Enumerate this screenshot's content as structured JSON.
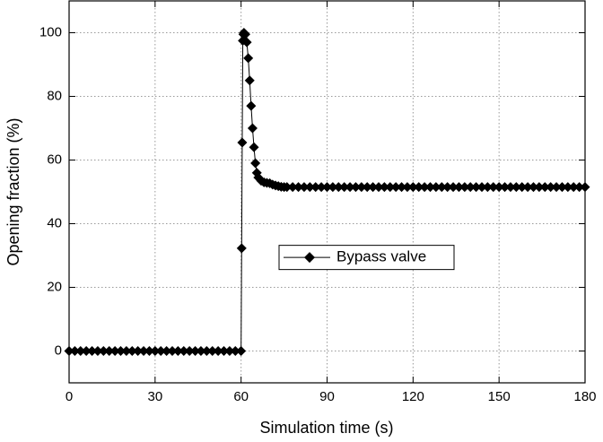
{
  "chart_data": {
    "type": "line",
    "x_label": "Simulation time (s)",
    "y_label": "Opening fraction (%)",
    "xlim": [
      0,
      180
    ],
    "ylim": [
      -10,
      110
    ],
    "xticks": [
      0,
      30,
      60,
      90,
      120,
      150,
      180
    ],
    "yticks": [
      0,
      20,
      40,
      60,
      80,
      100
    ],
    "grid": true,
    "legend": "center",
    "x": [
      0,
      2,
      4,
      6,
      8,
      10,
      12,
      14,
      16,
      18,
      20,
      22,
      24,
      26,
      28,
      30,
      32,
      34,
      36,
      38,
      40,
      42,
      44,
      46,
      48,
      50,
      52,
      54,
      56,
      58,
      60,
      60.2,
      60.4,
      60.6,
      60.8,
      61,
      61.5,
      62,
      62.5,
      63,
      63.5,
      64,
      64.5,
      65,
      65.5,
      66,
      67,
      68,
      69,
      70,
      71,
      72,
      73,
      74,
      75,
      76,
      78,
      80,
      82,
      84,
      86,
      88,
      90,
      92,
      94,
      96,
      98,
      100,
      102,
      104,
      106,
      108,
      110,
      112,
      114,
      116,
      118,
      120,
      122,
      124,
      126,
      128,
      130,
      132,
      134,
      136,
      138,
      140,
      142,
      144,
      146,
      148,
      150,
      152,
      154,
      156,
      158,
      160,
      162,
      164,
      166,
      168,
      170,
      172,
      174,
      176,
      178,
      180
    ],
    "series": [
      {
        "name": "Bypass valve",
        "color": "#000000",
        "marker": "diamond",
        "values": [
          0,
          0,
          0,
          0,
          0,
          0,
          0,
          0,
          0,
          0,
          0,
          0,
          0,
          0,
          0,
          0,
          0,
          0,
          0,
          0,
          0,
          0,
          0,
          0,
          0,
          0,
          0,
          0,
          0,
          0,
          0,
          32.3,
          65.5,
          97.5,
          99.5,
          100,
          99.5,
          97,
          92,
          85,
          77,
          70,
          64,
          59,
          56,
          54.5,
          53.5,
          53,
          52.8,
          52.7,
          52.3,
          52,
          51.8,
          51.6,
          51.5,
          51.5,
          51.5,
          51.5,
          51.5,
          51.5,
          51.5,
          51.5,
          51.5,
          51.5,
          51.5,
          51.5,
          51.5,
          51.5,
          51.5,
          51.5,
          51.5,
          51.5,
          51.5,
          51.5,
          51.5,
          51.5,
          51.5,
          51.5,
          51.5,
          51.5,
          51.5,
          51.5,
          51.5,
          51.5,
          51.5,
          51.5,
          51.5,
          51.5,
          51.5,
          51.5,
          51.5,
          51.5,
          51.5,
          51.5,
          51.5,
          51.5,
          51.5,
          51.5,
          51.5,
          51.5,
          51.5,
          51.5,
          51.5,
          51.5,
          51.5,
          51.5,
          51.5,
          51.5
        ]
      }
    ]
  }
}
